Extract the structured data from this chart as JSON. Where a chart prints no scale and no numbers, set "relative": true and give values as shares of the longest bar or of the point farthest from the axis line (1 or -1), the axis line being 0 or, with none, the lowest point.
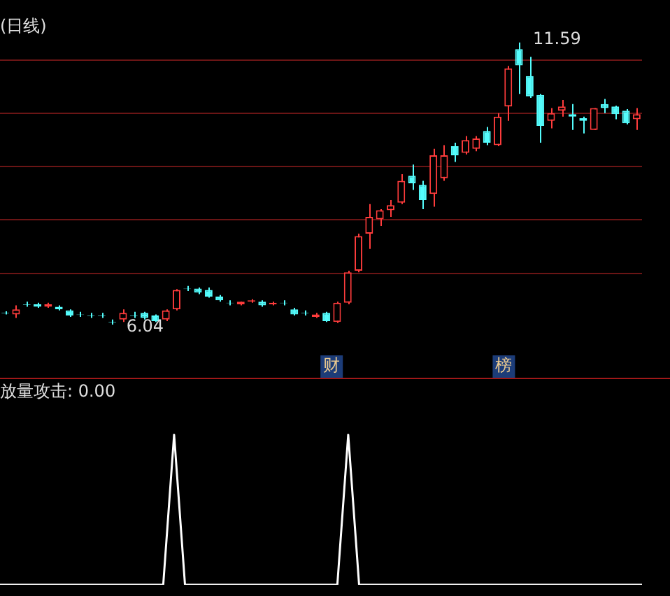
{
  "chart_data": [
    {
      "type": "candlestick",
      "title": "(日线)",
      "categories": [
        null,
        null,
        null,
        null,
        null,
        null,
        null,
        null,
        null,
        null,
        null,
        null,
        null,
        null,
        null,
        null,
        null,
        null,
        null,
        null,
        null,
        null,
        null,
        null,
        null,
        null,
        null,
        null,
        null,
        null,
        null,
        null,
        null,
        null,
        null,
        null,
        null,
        null,
        null,
        null,
        null,
        null,
        null,
        null,
        null,
        null,
        null,
        null,
        null,
        null,
        null,
        null,
        null,
        null,
        null,
        null,
        null,
        null,
        null,
        null
      ],
      "ohlc": [
        [
          6.27,
          6.3,
          6.24,
          6.26
        ],
        [
          6.24,
          6.42,
          6.17,
          6.34
        ],
        [
          6.44,
          6.49,
          6.39,
          6.43
        ],
        [
          6.44,
          6.47,
          6.37,
          6.39
        ],
        [
          6.39,
          6.47,
          6.37,
          6.44
        ],
        [
          6.39,
          6.42,
          6.32,
          6.34
        ],
        [
          6.32,
          6.34,
          6.19,
          6.22
        ],
        [
          6.24,
          6.29,
          6.19,
          6.23
        ],
        [
          6.22,
          6.27,
          6.17,
          6.21
        ],
        [
          6.22,
          6.27,
          6.17,
          6.21
        ],
        [
          6.09,
          6.14,
          6.04,
          6.08
        ],
        [
          6.14,
          6.34,
          6.09,
          6.27
        ],
        [
          6.22,
          6.29,
          6.17,
          6.21
        ],
        [
          6.27,
          6.29,
          6.14,
          6.17
        ],
        [
          6.22,
          6.24,
          6.09,
          6.11
        ],
        [
          6.14,
          6.34,
          6.11,
          6.32
        ],
        [
          6.34,
          6.74,
          6.32,
          6.72
        ],
        [
          6.75,
          6.8,
          6.7,
          6.74
        ],
        [
          6.75,
          6.77,
          6.64,
          6.67
        ],
        [
          6.72,
          6.77,
          6.57,
          6.59
        ],
        [
          6.59,
          6.62,
          6.49,
          6.52
        ],
        [
          6.47,
          6.52,
          6.42,
          6.46
        ],
        [
          6.44,
          6.49,
          6.42,
          6.49
        ],
        [
          6.49,
          6.54,
          6.47,
          6.52
        ],
        [
          6.49,
          6.52,
          6.39,
          6.42
        ],
        [
          6.44,
          6.49,
          6.42,
          6.47
        ],
        [
          6.47,
          6.52,
          6.42,
          6.46
        ],
        [
          6.34,
          6.37,
          6.22,
          6.24
        ],
        [
          6.27,
          6.32,
          6.22,
          6.26
        ],
        [
          6.19,
          6.27,
          6.17,
          6.24
        ],
        [
          6.27,
          6.29,
          6.09,
          6.11
        ],
        [
          6.09,
          6.49,
          6.07,
          6.47
        ],
        [
          6.47,
          7.1,
          6.44,
          7.07
        ],
        [
          7.1,
          7.83,
          7.07,
          7.78
        ],
        [
          7.83,
          8.41,
          7.53,
          8.16
        ],
        [
          8.11,
          8.31,
          7.98,
          8.29
        ],
        [
          8.29,
          8.49,
          8.16,
          8.39
        ],
        [
          8.44,
          9.0,
          8.41,
          8.87
        ],
        [
          8.97,
          9.19,
          8.69,
          8.82
        ],
        [
          8.79,
          8.87,
          8.31,
          8.49
        ],
        [
          8.61,
          9.5,
          8.36,
          9.37
        ],
        [
          8.92,
          9.57,
          8.87,
          9.37
        ],
        [
          9.55,
          9.62,
          9.24,
          9.37
        ],
        [
          9.42,
          9.75,
          9.39,
          9.67
        ],
        [
          9.5,
          9.75,
          9.45,
          9.7
        ],
        [
          9.85,
          9.93,
          9.57,
          9.62
        ],
        [
          9.57,
          10.2,
          9.55,
          10.13
        ],
        [
          10.33,
          11.13,
          10.05,
          11.08
        ],
        [
          11.46,
          11.59,
          10.58,
          11.14
        ],
        [
          10.93,
          11.31,
          10.5,
          10.53
        ],
        [
          10.56,
          10.58,
          9.62,
          9.95
        ],
        [
          10.05,
          10.3,
          9.9,
          10.2
        ],
        [
          10.25,
          10.46,
          10.13,
          10.33
        ],
        [
          10.18,
          10.38,
          9.87,
          10.13
        ],
        [
          10.1,
          10.13,
          9.8,
          10.05
        ],
        [
          9.87,
          10.3,
          9.87,
          10.3
        ],
        [
          10.38,
          10.48,
          10.2,
          10.3
        ],
        [
          10.33,
          10.35,
          10.08,
          10.18
        ],
        [
          10.25,
          10.28,
          9.98,
          10.0
        ],
        [
          10.08,
          10.3,
          9.87,
          10.18
        ]
      ],
      "colors": [
        "#54fcfc",
        "#ff3c3c",
        "#54fcfc",
        "#54fcfc",
        "#ff3c3c",
        "#54fcfc",
        "#54fcfc",
        "#54fcfc",
        "#54fcfc",
        "#54fcfc",
        "#54fcfc",
        "#ff3c3c",
        "#54fcfc",
        "#54fcfc",
        "#54fcfc",
        "#ff3c3c",
        "#ff3c3c",
        "#54fcfc",
        "#54fcfc",
        "#54fcfc",
        "#54fcfc",
        "#54fcfc",
        "#ff3c3c",
        "#ff3c3c",
        "#54fcfc",
        "#ff3c3c",
        "#54fcfc",
        "#54fcfc",
        "#54fcfc",
        "#ff3c3c",
        "#54fcfc",
        "#ff3c3c",
        "#ff3c3c",
        "#ff3c3c",
        "#ff3c3c",
        "#ff3c3c",
        "#ff3c3c",
        "#ff3c3c",
        "#54fcfc",
        "#54fcfc",
        "#ff3c3c",
        "#ff3c3c",
        "#54fcfc",
        "#ff3c3c",
        "#ff3c3c",
        "#54fcfc",
        "#ff3c3c",
        "#ff3c3c",
        "#54fcfc",
        "#54fcfc",
        "#54fcfc",
        "#ff3c3c",
        "#ff3c3c",
        "#54fcfc",
        "#54fcfc",
        "#ff3c3c",
        "#54fcfc",
        "#54fcfc",
        "#54fcfc",
        "#ff3c3c"
      ],
      "yticks": [
        {
          "value": 7.05,
          "label": null
        },
        {
          "value": 8.1,
          "label": null
        },
        {
          "value": 9.15,
          "label": null
        },
        {
          "value": 10.2,
          "label": null
        },
        {
          "value": 11.25,
          "label": null
        }
      ],
      "grid": "y",
      "tick_labels": false,
      "annotations": [
        "11.59",
        "6.04",
        "财",
        "榜"
      ]
    },
    {
      "type": "line",
      "title": "放量攻击: 0.00",
      "categories": [
        null,
        null,
        null,
        null,
        null,
        null,
        null,
        null,
        null,
        null,
        null,
        null,
        null,
        null,
        null,
        null,
        null,
        null,
        null,
        null,
        null,
        null,
        null,
        null,
        null,
        null,
        null,
        null,
        null,
        null,
        null,
        null,
        null,
        null,
        null,
        null,
        null,
        null,
        null,
        null,
        null,
        null,
        null,
        null,
        null,
        null,
        null,
        null,
        null,
        null,
        null,
        null,
        null,
        null,
        null,
        null,
        null,
        null,
        null,
        null
      ],
      "series": [
        {
          "color": "#ffffff",
          "values": [
            0,
            0,
            0,
            0,
            0,
            0,
            0,
            0,
            0,
            0,
            0,
            0,
            0,
            0,
            0,
            0,
            1,
            0,
            0,
            0,
            0,
            0,
            0,
            0,
            0,
            0,
            0,
            0,
            0,
            0,
            0,
            0,
            1,
            0,
            0,
            0,
            0,
            0,
            0,
            0,
            0,
            0,
            0,
            0,
            0,
            0,
            0,
            0,
            0,
            0,
            0,
            0,
            0,
            0,
            0,
            0,
            0,
            0,
            0,
            0
          ]
        }
      ],
      "relative": true,
      "tick_labels": false
    }
  ]
}
